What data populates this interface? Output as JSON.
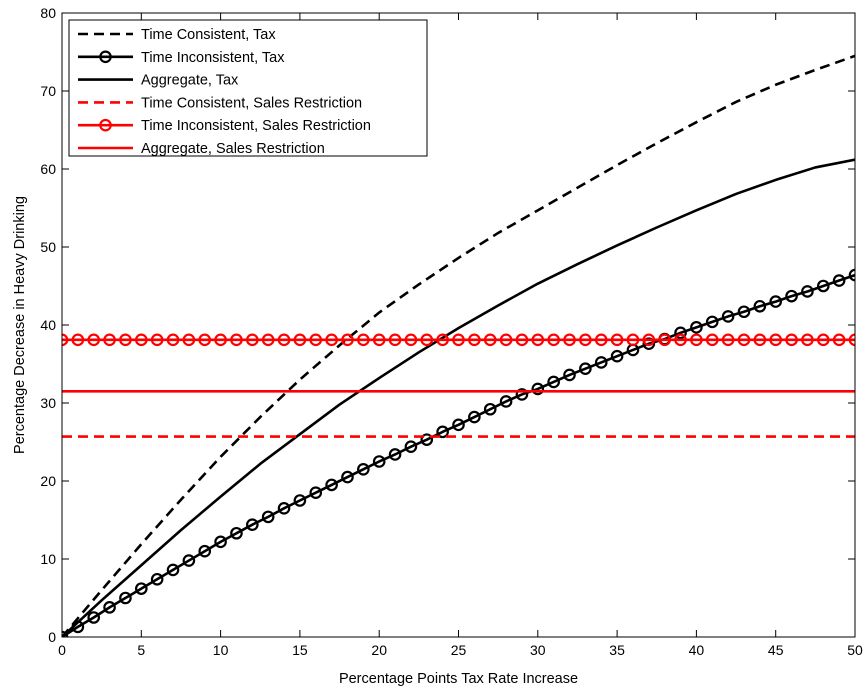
{
  "chart_data": {
    "type": "line",
    "xlabel": "Percentage Points Tax Rate Increase",
    "ylabel": "Percentage Decrease in Heavy Drinking",
    "xlim": [
      0,
      50
    ],
    "ylim": [
      0,
      80
    ],
    "xticks": [
      0,
      5,
      10,
      15,
      20,
      25,
      30,
      35,
      40,
      45,
      50
    ],
    "yticks": [
      0,
      10,
      20,
      30,
      40,
      50,
      60,
      70,
      80
    ],
    "grid": false,
    "legend_position": "top-left",
    "series": [
      {
        "name": "Time Consistent, Tax",
        "color": "#000000",
        "style": "dashed",
        "marker": "none",
        "x": [
          0,
          2.5,
          5,
          7.5,
          10,
          12.5,
          15,
          17.5,
          20,
          22.5,
          25,
          27.5,
          30,
          32.5,
          35,
          37.5,
          40,
          42.5,
          45,
          47.5,
          50
        ],
        "y": [
          0,
          6.0,
          11.9,
          17.6,
          23.1,
          28.2,
          33.0,
          37.4,
          41.6,
          45.2,
          48.6,
          51.8,
          54.7,
          57.6,
          60.5,
          63.3,
          66.0,
          68.6,
          70.8,
          72.7,
          74.5
        ]
      },
      {
        "name": "Time Inconsistent, Tax",
        "color": "#000000",
        "style": "solid",
        "marker": "circle",
        "x": [
          0,
          1,
          2,
          3,
          4,
          5,
          6,
          7,
          8,
          9,
          10,
          11,
          12,
          13,
          14,
          15,
          16,
          17,
          18,
          19,
          20,
          21,
          22,
          23,
          24,
          25,
          26,
          27,
          28,
          29,
          30,
          31,
          32,
          33,
          34,
          35,
          36,
          37,
          38,
          39,
          40,
          41,
          42,
          43,
          44,
          45,
          46,
          47,
          48,
          49,
          50
        ],
        "y": [
          0,
          1.3,
          2.5,
          3.8,
          5.0,
          6.2,
          7.4,
          8.6,
          9.8,
          11.0,
          12.2,
          13.3,
          14.4,
          15.4,
          16.5,
          17.5,
          18.5,
          19.5,
          20.5,
          21.5,
          22.5,
          23.4,
          24.4,
          25.3,
          26.3,
          27.2,
          28.2,
          29.2,
          30.2,
          31.1,
          31.8,
          32.7,
          33.6,
          34.4,
          35.2,
          36.0,
          36.8,
          37.6,
          38.2,
          39.0,
          39.7,
          40.4,
          41.1,
          41.7,
          42.4,
          43.0,
          43.7,
          44.3,
          45.0,
          45.7,
          46.4
        ]
      },
      {
        "name": "Aggregate, Tax",
        "color": "#000000",
        "style": "solid",
        "marker": "none",
        "x": [
          0,
          2.5,
          5,
          7.5,
          10,
          12.5,
          15,
          17.5,
          20,
          22.5,
          25,
          27.5,
          30,
          32.5,
          35,
          37.5,
          40,
          42.5,
          45,
          47.5,
          50
        ],
        "y": [
          0,
          4.7,
          9.2,
          13.7,
          18.0,
          22.2,
          26.0,
          29.8,
          33.2,
          36.5,
          39.6,
          42.5,
          45.3,
          47.8,
          50.2,
          52.5,
          54.7,
          56.8,
          58.6,
          60.2,
          61.2
        ]
      },
      {
        "name": "Time Consistent, Sales Restriction",
        "color": "#ff0000",
        "style": "dashed",
        "marker": "none",
        "x": [
          0,
          50
        ],
        "y": [
          25.7,
          25.7
        ]
      },
      {
        "name": "Time Inconsistent, Sales Restriction",
        "color": "#ff0000",
        "style": "solid",
        "marker": "circle",
        "x": [
          0,
          1,
          2,
          3,
          4,
          5,
          6,
          7,
          8,
          9,
          10,
          11,
          12,
          13,
          14,
          15,
          16,
          17,
          18,
          19,
          20,
          21,
          22,
          23,
          24,
          25,
          26,
          27,
          28,
          29,
          30,
          31,
          32,
          33,
          34,
          35,
          36,
          37,
          38,
          39,
          40,
          41,
          42,
          43,
          44,
          45,
          46,
          47,
          48,
          49,
          50
        ],
        "y": [
          38.1,
          38.1,
          38.1,
          38.1,
          38.1,
          38.1,
          38.1,
          38.1,
          38.1,
          38.1,
          38.1,
          38.1,
          38.1,
          38.1,
          38.1,
          38.1,
          38.1,
          38.1,
          38.1,
          38.1,
          38.1,
          38.1,
          38.1,
          38.1,
          38.1,
          38.1,
          38.1,
          38.1,
          38.1,
          38.1,
          38.1,
          38.1,
          38.1,
          38.1,
          38.1,
          38.1,
          38.1,
          38.1,
          38.1,
          38.1,
          38.1,
          38.1,
          38.1,
          38.1,
          38.1,
          38.1,
          38.1,
          38.1,
          38.1,
          38.1,
          38.1
        ]
      },
      {
        "name": "Aggregate, Sales Restriction",
        "color": "#ff0000",
        "style": "solid",
        "marker": "none",
        "x": [
          0,
          50
        ],
        "y": [
          31.5,
          31.5
        ]
      }
    ]
  }
}
